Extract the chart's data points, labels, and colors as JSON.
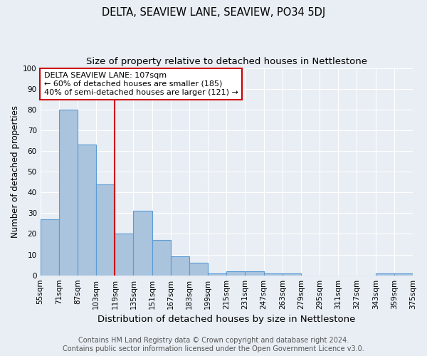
{
  "title": "DELTA, SEAVIEW LANE, SEAVIEW, PO34 5DJ",
  "subtitle": "Size of property relative to detached houses in Nettlestone",
  "xlabel": "Distribution of detached houses by size in Nettlestone",
  "ylabel": "Number of detached properties",
  "bar_values": [
    27,
    80,
    63,
    44,
    20,
    31,
    17,
    9,
    6,
    1,
    2,
    2,
    1,
    1,
    0,
    0,
    0,
    0,
    1,
    1
  ],
  "bar_labels": [
    "55sqm",
    "71sqm",
    "87sqm",
    "103sqm",
    "119sqm",
    "135sqm",
    "151sqm",
    "167sqm",
    "183sqm",
    "199sqm",
    "215sqm",
    "231sqm",
    "247sqm",
    "263sqm",
    "279sqm",
    "295sqm",
    "311sqm",
    "327sqm",
    "343sqm",
    "359sqm",
    "375sqm"
  ],
  "bar_color": "#aac4de",
  "bar_edge_color": "#5b9bd5",
  "bar_linewidth": 0.8,
  "red_line_x": 3.5,
  "red_line_color": "#cc0000",
  "ylim": [
    0,
    100
  ],
  "yticks": [
    0,
    10,
    20,
    30,
    40,
    50,
    60,
    70,
    80,
    90,
    100
  ],
  "annotation_title": "DELTA SEAVIEW LANE: 107sqm",
  "annotation_line1": "← 60% of detached houses are smaller (185)",
  "annotation_line2": "40% of semi-detached houses are larger (121) →",
  "annotation_box_color": "#ffffff",
  "annotation_box_edge_color": "#cc0000",
  "background_color": "#e8eef4",
  "grid_color": "#ffffff",
  "footer_line1": "Contains HM Land Registry data © Crown copyright and database right 2024.",
  "footer_line2": "Contains public sector information licensed under the Open Government Licence v3.0.",
  "title_fontsize": 10.5,
  "subtitle_fontsize": 9.5,
  "xlabel_fontsize": 9.5,
  "ylabel_fontsize": 8.5,
  "tick_fontsize": 7.5,
  "annotation_fontsize": 8,
  "footer_fontsize": 7
}
